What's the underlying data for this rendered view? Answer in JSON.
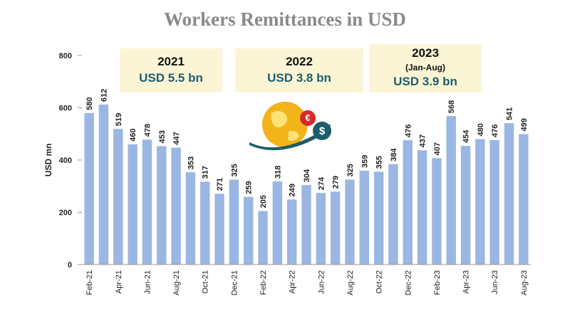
{
  "chart_data": {
    "type": "bar",
    "title": "Workers Remittances in USD",
    "y_label": "USD mn",
    "categories": [
      "Feb-21",
      null,
      "Apr-21",
      null,
      "Jun-21",
      null,
      "Aug-21",
      null,
      "Oct-21",
      null,
      "Dec-21",
      null,
      "Feb-22",
      null,
      "Apr-22",
      null,
      "Jun-22",
      null,
      "Aug-22",
      null,
      "Oct-22",
      null,
      "Dec-22",
      null,
      "Feb-23",
      null,
      "Apr-23",
      null,
      "Jun-23",
      null,
      "Aug-23"
    ],
    "values": [
      580,
      612,
      519,
      460,
      478,
      453,
      447,
      353,
      317,
      271,
      325,
      259,
      205,
      318,
      249,
      304,
      274,
      279,
      325,
      359,
      355,
      384,
      476,
      437,
      407,
      568,
      454,
      480,
      476,
      541,
      499
    ],
    "color": "#9ab6e2",
    "ylim": [
      0,
      800
    ],
    "yticks": [
      0,
      200,
      400,
      600,
      800
    ],
    "grid": false,
    "annotations": [
      {
        "year": "2021",
        "amount": "USD 5.5 bn"
      },
      {
        "year": "2022",
        "amount": "USD 3.8 bn"
      },
      {
        "year": "2023",
        "note": "(Jan-Aug)",
        "amount": "USD 3.9 bn"
      }
    ]
  }
}
